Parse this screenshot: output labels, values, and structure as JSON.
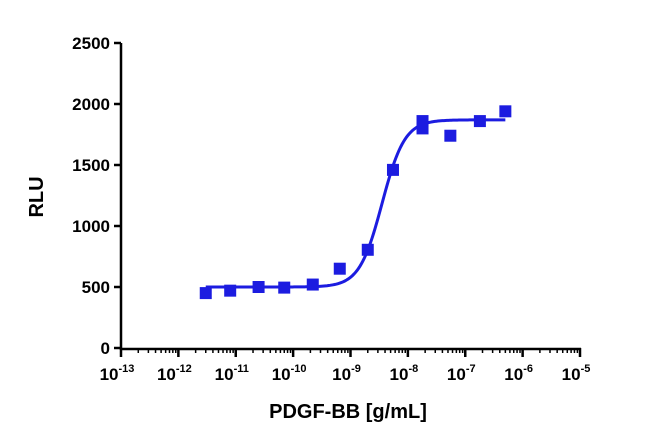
{
  "chart_data": {
    "type": "scatter",
    "xlabel": "PDGF-BB [g/mL]",
    "ylabel": "RLU",
    "x_scale": "log10",
    "xlim": [
      1e-13,
      1e-05
    ],
    "ylim": [
      0,
      2500
    ],
    "y_ticks": [
      0,
      500,
      1000,
      1500,
      2000,
      2500
    ],
    "x_ticks": [
      {
        "base": "10",
        "exp": "-13"
      },
      {
        "base": "10",
        "exp": "-12"
      },
      {
        "base": "10",
        "exp": "-11"
      },
      {
        "base": "10",
        "exp": "-10"
      },
      {
        "base": "10",
        "exp": "-9"
      },
      {
        "base": "10",
        "exp": "-8"
      },
      {
        "base": "10",
        "exp": "-7"
      },
      {
        "base": "10",
        "exp": "-6"
      },
      {
        "base": "10",
        "exp": "-5"
      }
    ],
    "series": [
      {
        "marker": "square",
        "color": "#1c1ce0",
        "x": [
          3e-12,
          8e-12,
          2.5e-11,
          7e-11,
          2.2e-10,
          6.5e-10,
          2e-09,
          5.5e-09,
          1.8e-08,
          1.8e-08,
          5.5e-08,
          1.8e-07,
          5e-07
        ],
        "y": [
          450,
          470,
          500,
          495,
          520,
          650,
          805,
          1460,
          1860,
          1800,
          1740,
          1860,
          1940
        ]
      }
    ],
    "fit": {
      "model": "four-parameter logistic",
      "bottom": 500,
      "top": 1870,
      "log_ec50": -8.45,
      "hill": 2.2,
      "x_range": [
        3e-12,
        5e-07
      ],
      "color": "#1c1ce0"
    },
    "grid": false,
    "legend": "none"
  }
}
